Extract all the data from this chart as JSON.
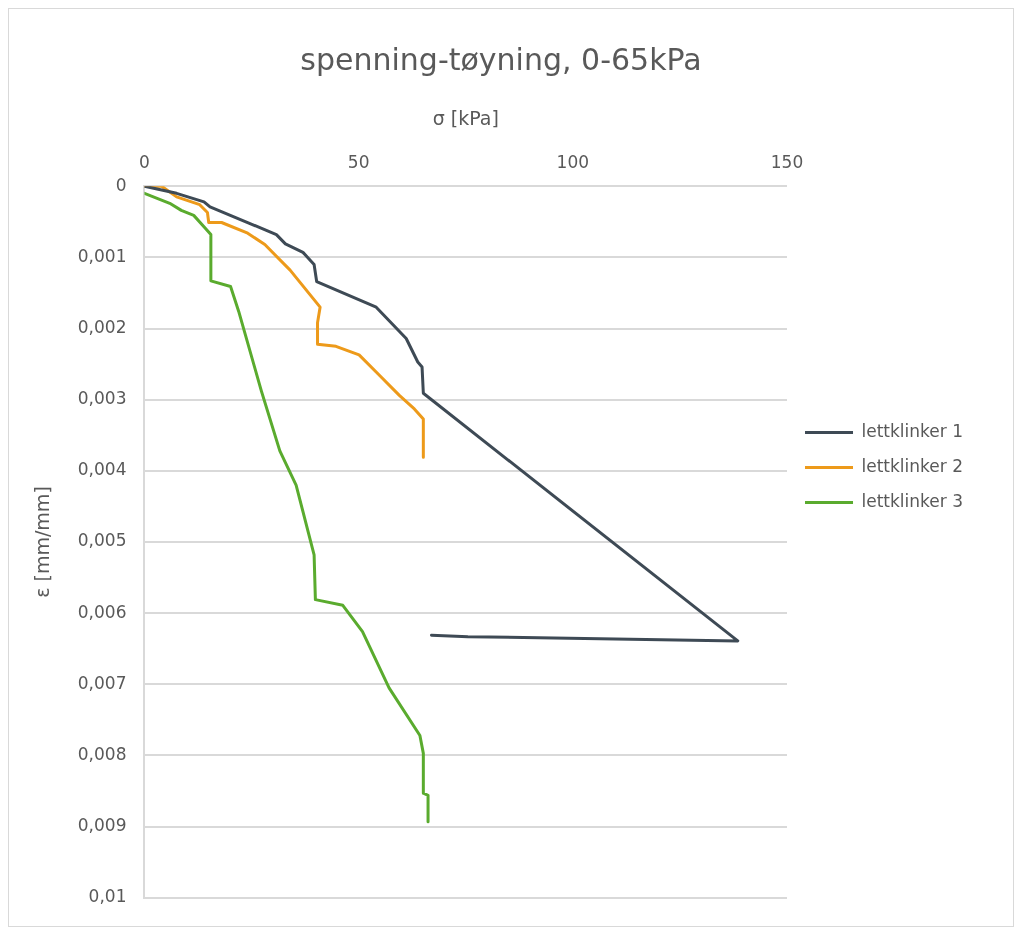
{
  "chart_data": {
    "type": "line",
    "title": "spenning-tøyning, 0-65kPa",
    "xlabel": "σ [kPa]",
    "ylabel": "ε [mm/mm]",
    "xlim": [
      0,
      150
    ],
    "xticks": [
      0,
      50,
      100,
      150
    ],
    "ylim": [
      0.01,
      0
    ],
    "yticks": [
      0,
      {
        "value": 0.001,
        "label": "0,001"
      },
      {
        "value": 0.002,
        "label": "0,002"
      },
      {
        "value": 0.003,
        "label": "0,003"
      },
      {
        "value": 0.004,
        "label": "0,004"
      },
      {
        "value": 0.005,
        "label": "0,005"
      },
      {
        "value": 0.006,
        "label": "0,006"
      },
      {
        "value": 0.007,
        "label": "0,007"
      },
      {
        "value": 0.008,
        "label": "0,008"
      },
      {
        "value": 0.009,
        "label": "0,009"
      },
      {
        "value": 0.01,
        "label": "0,01"
      }
    ],
    "grid": "y",
    "legend": "right",
    "marker": "none",
    "line_style": "solid",
    "series": [
      {
        "name": "lettklinker 1",
        "color": "#3e4a55",
        "x": [
          0,
          7.5,
          13.9,
          15.3,
          30.8,
          32.9,
          37.0,
          39.6,
          40.2,
          54.1,
          61.1,
          63.8,
          64.8,
          65.1,
          138.5,
          75.5,
          67
        ],
        "values": [
          0,
          0.0001,
          0.00022,
          0.00029,
          0.00068,
          0.00081,
          0.00093,
          0.0011,
          0.00134,
          0.0017,
          0.00214,
          0.00247,
          0.00254,
          0.00291,
          0.00639,
          0.00633,
          0.00631
        ]
      },
      {
        "name": "lettklinker 2",
        "color": "#ed9a1a",
        "x": [
          0,
          4.0,
          7.5,
          12.9,
          14.7,
          15.0,
          18.0,
          24.1,
          28.1,
          34.0,
          41.0,
          40.4,
          40.4,
          44.7,
          50.1,
          54.9,
          59.5,
          63.0,
          65.1,
          65.1
        ],
        "values": [
          0,
          0,
          0.00015,
          0.00026,
          0.00037,
          0.00051,
          0.00051,
          0.00066,
          0.00082,
          0.00118,
          0.0017,
          0.00192,
          0.00222,
          0.00225,
          0.00237,
          0.00266,
          0.00294,
          0.00313,
          0.00327,
          0.00381
        ]
      },
      {
        "name": "lettklinker 3",
        "color": "#5aab2e",
        "x": [
          0,
          5.9,
          8.6,
          11.5,
          14.2,
          15.5,
          15.5,
          20.1,
          22.0,
          27.3,
          31.6,
          35.4,
          39.6,
          39.9,
          46.3,
          50.9,
          57.1,
          64.3,
          65.1,
          65.1,
          66.2,
          66.2
        ],
        "values": [
          0.0001,
          0.00024,
          0.00034,
          0.00041,
          0.00059,
          0.00068,
          0.00133,
          0.00141,
          0.00176,
          0.00288,
          0.00372,
          0.0042,
          0.00518,
          0.00581,
          0.00589,
          0.00626,
          0.00705,
          0.00772,
          0.00797,
          0.00853,
          0.00856,
          0.00893
        ]
      }
    ]
  }
}
